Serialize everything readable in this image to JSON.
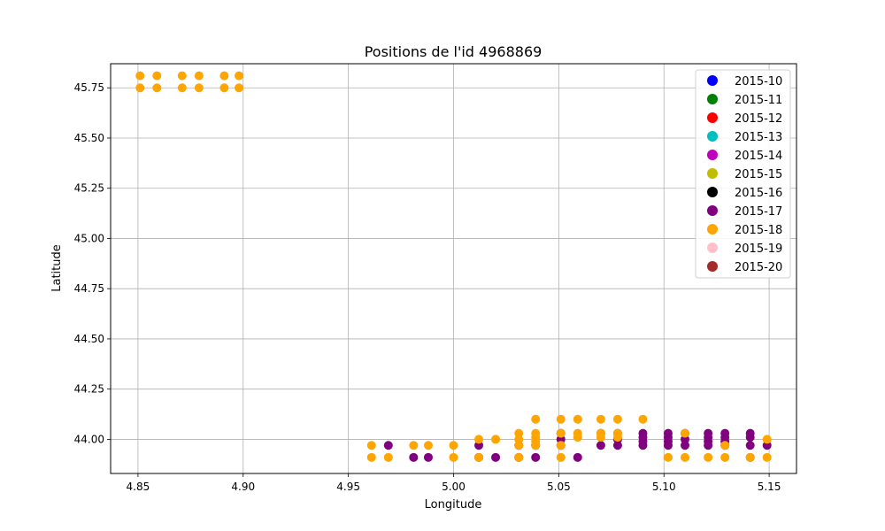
{
  "chart_data": {
    "type": "scatter",
    "title": "Positions de l'id 4968869",
    "xlabel": "Longitude",
    "ylabel": "Latitude",
    "xlim": [
      4.837,
      5.163
    ],
    "ylim": [
      43.83,
      45.87
    ],
    "grid": true,
    "legend_position": "top-right",
    "x_ticks": [
      "4.85",
      "4.90",
      "4.95",
      "5.00",
      "5.05",
      "5.10",
      "5.15"
    ],
    "y_ticks": [
      "44.00",
      "44.25",
      "44.50",
      "44.75",
      "45.00",
      "45.25",
      "45.50",
      "45.75"
    ],
    "series": [
      {
        "name": "2015-10",
        "color": "#0000ff",
        "x": [],
        "y": []
      },
      {
        "name": "2015-11",
        "color": "#008000",
        "x": [],
        "y": []
      },
      {
        "name": "2015-12",
        "color": "#ff0000",
        "x": [],
        "y": []
      },
      {
        "name": "2015-13",
        "color": "#00bfbf",
        "x": [],
        "y": []
      },
      {
        "name": "2015-14",
        "color": "#bf00bf",
        "x": [],
        "y": []
      },
      {
        "name": "2015-15",
        "color": "#bfbf00",
        "x": [],
        "y": []
      },
      {
        "name": "2015-16",
        "color": "#000000",
        "x": [],
        "y": []
      },
      {
        "name": "2015-17",
        "color": "#800080",
        "x": [
          4.969,
          4.981,
          4.988,
          5.012,
          5.02,
          5.031,
          5.039,
          5.051,
          5.059,
          5.07,
          5.078,
          5.078,
          5.078,
          5.09,
          5.09,
          5.09,
          5.09,
          5.102,
          5.102,
          5.102,
          5.102,
          5.11,
          5.11,
          5.11,
          5.121,
          5.121,
          5.121,
          5.121,
          5.129,
          5.129,
          5.129,
          5.129,
          5.141,
          5.141,
          5.141,
          5.141,
          5.149,
          5.051,
          5.051,
          5.07,
          5.031,
          5.039,
          5.012
        ],
        "y": [
          43.97,
          43.91,
          43.91,
          43.97,
          43.91,
          43.97,
          43.91,
          44.03,
          43.91,
          43.97,
          44.03,
          44.0,
          43.97,
          44.03,
          44.01,
          43.99,
          43.97,
          44.03,
          44.01,
          43.99,
          43.97,
          44.03,
          44.0,
          43.97,
          44.03,
          44.01,
          43.99,
          43.97,
          44.03,
          44.01,
          43.99,
          43.97,
          44.03,
          44.01,
          43.97,
          43.91,
          43.97,
          44.0,
          43.97,
          44.03,
          43.91,
          43.97,
          43.91
        ]
      },
      {
        "name": "2015-18",
        "color": "#ffa500",
        "x": [
          4.851,
          4.851,
          4.859,
          4.859,
          4.871,
          4.871,
          4.879,
          4.879,
          4.891,
          4.891,
          4.898,
          4.898,
          4.961,
          4.961,
          4.969,
          4.981,
          4.988,
          5.0,
          5.0,
          5.012,
          5.012,
          5.02,
          5.02,
          5.031,
          5.031,
          5.031,
          5.031,
          5.039,
          5.039,
          5.039,
          5.039,
          5.039,
          5.051,
          5.051,
          5.051,
          5.051,
          5.059,
          5.059,
          5.059,
          5.07,
          5.07,
          5.07,
          5.078,
          5.078,
          5.078,
          5.09,
          5.102,
          5.11,
          5.11,
          5.121,
          5.129,
          5.129,
          5.141,
          5.149,
          5.149
        ],
        "y": [
          45.81,
          45.75,
          45.81,
          45.75,
          45.81,
          45.75,
          45.81,
          45.75,
          45.81,
          45.75,
          45.81,
          45.75,
          43.97,
          43.91,
          43.91,
          43.97,
          43.97,
          43.97,
          43.91,
          44.0,
          43.91,
          44.0,
          44.0,
          44.03,
          44.0,
          43.97,
          43.91,
          44.1,
          44.03,
          44.01,
          43.99,
          43.97,
          44.1,
          44.03,
          43.97,
          43.91,
          44.1,
          44.03,
          44.01,
          44.1,
          44.03,
          44.01,
          44.1,
          44.03,
          44.01,
          44.1,
          43.91,
          44.03,
          43.91,
          43.91,
          43.97,
          43.91,
          43.91,
          44.0,
          43.91
        ]
      },
      {
        "name": "2015-19",
        "color": "#ffc0cb",
        "x": [],
        "y": []
      },
      {
        "name": "2015-20",
        "color": "#a52a2a",
        "x": [],
        "y": []
      }
    ]
  }
}
